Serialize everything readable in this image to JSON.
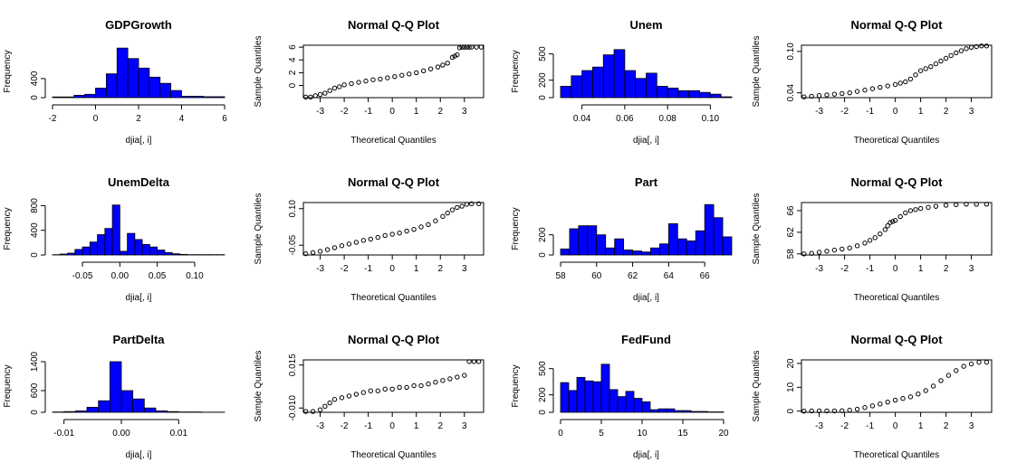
{
  "chart_data": [
    {
      "type": "histogram",
      "title": "GDPGrowth",
      "xlabel": "djia[, i]",
      "ylabel": "Frequency",
      "bins": [
        -2,
        -1.5,
        -1,
        -0.5,
        0,
        0.5,
        1,
        1.5,
        2,
        2.5,
        3,
        3.5,
        4,
        4.5,
        5,
        5.5,
        6
      ],
      "counts": [
        15,
        15,
        50,
        70,
        200,
        500,
        1040,
        820,
        620,
        430,
        300,
        150,
        30,
        30,
        20,
        20
      ],
      "xlim": [
        -2,
        6
      ],
      "ylim": [
        0,
        1100
      ],
      "xticks": [
        -2,
        0,
        2,
        4,
        6
      ],
      "yticks": [
        0,
        400
      ]
    },
    {
      "type": "scatter",
      "subtype": "qq",
      "title": "Normal Q-Q Plot",
      "xlabel": "Theoretical Quantiles",
      "ylabel": "Sample Quantiles",
      "x": [
        -3.6,
        -3.4,
        -3.2,
        -3.0,
        -2.8,
        -2.6,
        -2.4,
        -2.2,
        -2.0,
        -1.7,
        -1.4,
        -1.1,
        -0.8,
        -0.5,
        -0.2,
        0.1,
        0.4,
        0.7,
        1.0,
        1.3,
        1.6,
        1.9,
        2.1,
        2.3,
        2.5,
        2.6,
        2.7,
        2.8,
        2.9,
        3.0,
        3.1,
        3.2,
        3.3,
        3.5,
        3.7
      ],
      "y": [
        -1.8,
        -1.8,
        -1.6,
        -1.4,
        -1.2,
        -0.8,
        -0.4,
        -0.2,
        0.1,
        0.3,
        0.5,
        0.7,
        0.9,
        1.0,
        1.2,
        1.4,
        1.6,
        1.8,
        2.0,
        2.3,
        2.6,
        2.9,
        3.2,
        3.5,
        4.4,
        4.6,
        4.8,
        5.9,
        6.0,
        6.0,
        6.0,
        6.0,
        6.0,
        6.0,
        6.0
      ],
      "xlim": [
        -3.7,
        3.8
      ],
      "ylim": [
        -1.9,
        6.3
      ],
      "xticks": [
        -3,
        -2,
        -1,
        0,
        1,
        2,
        3
      ],
      "yticks": [
        0,
        2,
        4,
        6
      ]
    },
    {
      "type": "histogram",
      "title": "Unem",
      "xlabel": "djia[, i]",
      "ylabel": "Frequency",
      "bins": [
        0.03,
        0.035,
        0.04,
        0.045,
        0.05,
        0.055,
        0.06,
        0.065,
        0.07,
        0.075,
        0.08,
        0.085,
        0.09,
        0.095,
        0.1,
        0.105,
        0.11
      ],
      "counts": [
        130,
        250,
        310,
        350,
        490,
        550,
        310,
        220,
        280,
        130,
        110,
        80,
        80,
        60,
        40,
        10
      ],
      "xlim": [
        0.03,
        0.11
      ],
      "ylim": [
        0,
        600
      ],
      "xticks": [
        0.04,
        0.06,
        0.08,
        0.1
      ],
      "yticks": [
        0,
        200,
        500
      ]
    },
    {
      "type": "scatter",
      "subtype": "qq",
      "title": "Normal Q-Q Plot",
      "xlabel": "Theoretical Quantiles",
      "ylabel": "Sample Quantiles",
      "x": [
        -3.6,
        -3.3,
        -3.0,
        -2.7,
        -2.4,
        -2.1,
        -1.8,
        -1.5,
        -1.2,
        -0.9,
        -0.6,
        -0.3,
        0.0,
        0.2,
        0.4,
        0.6,
        0.8,
        1.0,
        1.2,
        1.4,
        1.6,
        1.8,
        2.0,
        2.2,
        2.4,
        2.6,
        2.8,
        3.0,
        3.2,
        3.4,
        3.6
      ],
      "y": [
        0.034,
        0.035,
        0.036,
        0.037,
        0.038,
        0.039,
        0.04,
        0.042,
        0.044,
        0.046,
        0.048,
        0.05,
        0.052,
        0.054,
        0.056,
        0.06,
        0.066,
        0.072,
        0.075,
        0.078,
        0.082,
        0.086,
        0.09,
        0.094,
        0.098,
        0.101,
        0.104,
        0.106,
        0.107,
        0.108,
        0.108
      ],
      "xlim": [
        -3.7,
        3.8
      ],
      "ylim": [
        0.033,
        0.109
      ],
      "xticks": [
        -3,
        -2,
        -1,
        0,
        1,
        2,
        3
      ],
      "yticks": [
        0.04,
        0.1
      ]
    },
    {
      "type": "histogram",
      "title": "UnemDelta",
      "xlabel": "djia[, i]",
      "ylabel": "Frequency",
      "bins": [
        -0.09,
        -0.08,
        -0.07,
        -0.06,
        -0.05,
        -0.04,
        -0.03,
        -0.02,
        -0.01,
        0.0,
        0.01,
        0.02,
        0.03,
        0.04,
        0.05,
        0.06,
        0.07,
        0.08,
        0.09,
        0.1,
        0.11,
        0.12,
        0.13,
        0.14
      ],
      "counts": [
        5,
        15,
        30,
        90,
        130,
        210,
        330,
        430,
        810,
        60,
        350,
        250,
        170,
        130,
        80,
        40,
        20,
        10,
        5,
        5,
        5,
        5,
        5
      ],
      "xlim": [
        -0.09,
        0.14
      ],
      "ylim": [
        0,
        850
      ],
      "xticks": [
        -0.05,
        0.0,
        0.05,
        0.1
      ],
      "yticks": [
        0,
        400,
        800
      ]
    },
    {
      "type": "scatter",
      "subtype": "qq",
      "title": "Normal Q-Q Plot",
      "xlabel": "Theoretical Quantiles",
      "ylabel": "Sample Quantiles",
      "x": [
        -3.6,
        -3.3,
        -3.0,
        -2.7,
        -2.4,
        -2.1,
        -1.8,
        -1.5,
        -1.2,
        -0.9,
        -0.6,
        -0.3,
        0.0,
        0.3,
        0.6,
        0.9,
        1.2,
        1.5,
        1.8,
        2.1,
        2.3,
        2.5,
        2.7,
        2.9,
        3.1,
        3.3,
        3.6
      ],
      "y": [
        -0.085,
        -0.08,
        -0.075,
        -0.068,
        -0.06,
        -0.052,
        -0.045,
        -0.038,
        -0.03,
        -0.025,
        -0.018,
        -0.01,
        -0.005,
        0.0,
        0.008,
        0.015,
        0.025,
        0.035,
        0.05,
        0.068,
        0.082,
        0.095,
        0.105,
        0.11,
        0.118,
        0.12,
        0.12
      ],
      "xlim": [
        -3.7,
        3.8
      ],
      "ylim": [
        -0.09,
        0.125
      ],
      "xticks": [
        -3,
        -2,
        -1,
        0,
        1,
        2,
        3
      ],
      "yticks": [
        -0.05,
        0.1
      ]
    },
    {
      "type": "histogram",
      "title": "Part",
      "xlabel": "djia[, i]",
      "ylabel": "Frequency",
      "bins": [
        58,
        58.5,
        59,
        59.5,
        60,
        60.5,
        61,
        61.5,
        62,
        62.5,
        63,
        63.5,
        64,
        64.5,
        65,
        65.5,
        66,
        66.5,
        67,
        67.5
      ],
      "counts": [
        60,
        260,
        290,
        290,
        200,
        70,
        160,
        50,
        40,
        30,
        70,
        110,
        310,
        160,
        140,
        240,
        500,
        370,
        180
      ],
      "xlim": [
        58,
        67.5
      ],
      "ylim": [
        0,
        520
      ],
      "xticks": [
        58,
        60,
        62,
        64,
        66
      ],
      "yticks": [
        0,
        200
      ]
    },
    {
      "type": "scatter",
      "subtype": "qq",
      "title": "Normal Q-Q Plot",
      "xlabel": "Theoretical Quantiles",
      "ylabel": "Sample Quantiles",
      "x": [
        -3.6,
        -3.3,
        -3.0,
        -2.7,
        -2.4,
        -2.1,
        -1.8,
        -1.5,
        -1.2,
        -1.0,
        -0.8,
        -0.6,
        -0.4,
        -0.3,
        -0.2,
        -0.1,
        0.0,
        0.2,
        0.4,
        0.6,
        0.8,
        1.0,
        1.3,
        1.6,
        2.0,
        2.4,
        2.8,
        3.2,
        3.6
      ],
      "y": [
        58.0,
        58.1,
        58.3,
        58.5,
        58.7,
        58.9,
        59.1,
        59.5,
        60.0,
        60.5,
        61.0,
        61.7,
        62.5,
        63.2,
        63.8,
        64.0,
        64.2,
        64.9,
        65.6,
        66.0,
        66.2,
        66.4,
        66.6,
        66.8,
        67.0,
        67.1,
        67.2,
        67.2,
        67.2
      ],
      "xlim": [
        -3.7,
        3.8
      ],
      "ylim": [
        57.8,
        67.5
      ],
      "xticks": [
        -3,
        -2,
        -1,
        0,
        1,
        2,
        3
      ],
      "yticks": [
        58,
        62,
        66
      ]
    },
    {
      "type": "histogram",
      "title": "PartDelta",
      "xlabel": "djia[, i]",
      "ylabel": "Frequency",
      "bins": [
        -0.012,
        -0.01,
        -0.008,
        -0.006,
        -0.004,
        -0.002,
        0.0,
        0.002,
        0.004,
        0.006,
        0.008,
        0.01,
        0.012,
        0.014,
        0.016,
        0.018
      ],
      "counts": [
        10,
        20,
        40,
        140,
        320,
        1400,
        600,
        370,
        120,
        40,
        20,
        10,
        10,
        5,
        5
      ],
      "xlim": [
        -0.012,
        0.018
      ],
      "ylim": [
        0,
        1450
      ],
      "xticks": [
        -0.01,
        0.0,
        0.01
      ],
      "yticks": [
        0,
        600,
        1400
      ]
    },
    {
      "type": "scatter",
      "subtype": "qq",
      "title": "Normal Q-Q Plot",
      "xlabel": "Theoretical Quantiles",
      "ylabel": "Sample Quantiles",
      "x": [
        -3.6,
        -3.3,
        -3.0,
        -2.8,
        -2.6,
        -2.4,
        -2.1,
        -1.8,
        -1.5,
        -1.2,
        -0.9,
        -0.6,
        -0.3,
        0.0,
        0.3,
        0.6,
        0.9,
        1.2,
        1.5,
        1.8,
        2.1,
        2.4,
        2.7,
        3.0,
        3.2,
        3.4,
        3.6
      ],
      "y": [
        -0.012,
        -0.012,
        -0.011,
        -0.009,
        -0.007,
        -0.005,
        -0.004,
        -0.003,
        -0.002,
        -0.001,
        0.0,
        0.0,
        0.001,
        0.001,
        0.002,
        0.002,
        0.003,
        0.003,
        0.004,
        0.005,
        0.006,
        0.007,
        0.008,
        0.009,
        0.017,
        0.017,
        0.017
      ],
      "xlim": [
        -3.7,
        3.8
      ],
      "ylim": [
        -0.0125,
        0.018
      ],
      "xticks": [
        -3,
        -2,
        -1,
        0,
        1,
        2,
        3
      ],
      "yticks": [
        -0.01,
        0.015
      ]
    },
    {
      "type": "histogram",
      "title": "FedFund",
      "xlabel": "djia[, i]",
      "ylabel": "Frequency",
      "bins": [
        0,
        1,
        2,
        3,
        4,
        5,
        6,
        7,
        8,
        9,
        10,
        11,
        12,
        13,
        14,
        15,
        16,
        17,
        18,
        19,
        20
      ],
      "counts": [
        340,
        250,
        400,
        360,
        350,
        550,
        260,
        180,
        240,
        160,
        120,
        30,
        40,
        40,
        20,
        20,
        10,
        10,
        5,
        5
      ],
      "xlim": [
        0,
        21
      ],
      "ylim": [
        0,
        600
      ],
      "xticks": [
        0,
        5,
        10,
        15,
        20
      ],
      "yticks": [
        0,
        200,
        500
      ]
    },
    {
      "type": "scatter",
      "subtype": "qq",
      "title": "Normal Q-Q Plot",
      "xlabel": "Theoretical Quantiles",
      "ylabel": "Sample Quantiles",
      "x": [
        -3.6,
        -3.3,
        -3.0,
        -2.7,
        -2.4,
        -2.1,
        -1.8,
        -1.5,
        -1.2,
        -0.9,
        -0.6,
        -0.3,
        0.0,
        0.3,
        0.6,
        0.9,
        1.2,
        1.5,
        1.8,
        2.1,
        2.4,
        2.7,
        3.0,
        3.3,
        3.6
      ],
      "y": [
        0.0,
        0.1,
        0.1,
        0.1,
        0.1,
        0.2,
        0.4,
        0.8,
        1.5,
        2.2,
        3.0,
        3.8,
        4.6,
        5.3,
        6.0,
        7.2,
        8.6,
        10.5,
        12.8,
        15.0,
        17.0,
        18.8,
        19.8,
        20.5,
        20.5
      ],
      "xlim": [
        -3.7,
        3.8
      ],
      "ylim": [
        -0.5,
        21.5
      ],
      "xticks": [
        -3,
        -2,
        -1,
        0,
        1,
        2,
        3
      ],
      "yticks": [
        0,
        10,
        20
      ]
    }
  ],
  "colors": {
    "bar_fill": "#0000ff",
    "bar_stroke": "#000000",
    "point": "#000000"
  }
}
